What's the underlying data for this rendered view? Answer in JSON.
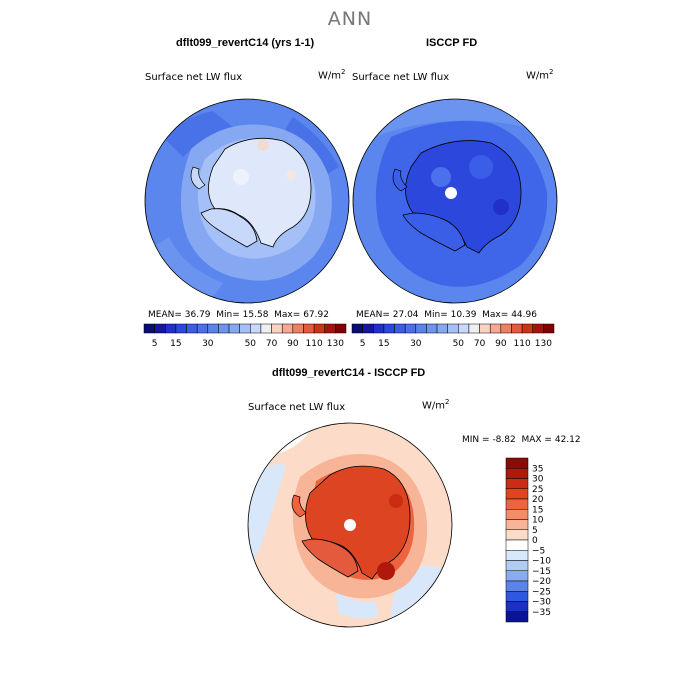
{
  "title": "ANN",
  "colors": {
    "ocean_mid": "#5b86ee",
    "ocean_deep": "#3f66e8",
    "land_light": "#dfe7fb",
    "diff_red": "#dd4422"
  },
  "chart_data": [
    {
      "type": "heatmap",
      "title": "dflt099_revertC14 (yrs 1-1)",
      "subtitle": "Surface net LW flux",
      "units": "W/m",
      "units_exp": "2",
      "mean_label": "MEAN=",
      "mean": "36.79",
      "min_label": "Min=",
      "min": "15.58",
      "max_label": "Max=",
      "max": "67.92",
      "levels": [
        5,
        10,
        15,
        20,
        25,
        30,
        35,
        40,
        45,
        50,
        60,
        70,
        80,
        90,
        100,
        110,
        120,
        130
      ],
      "tick_labels": [
        "5",
        "15",
        "30",
        "50",
        "70",
        "90",
        "110",
        "130"
      ],
      "colors": [
        "#0a0a78",
        "#1616a6",
        "#2030c8",
        "#2c48dc",
        "#3a5ee8",
        "#4a70ec",
        "#5b82ee",
        "#6e94f0",
        "#86a8f2",
        "#a4c0f6",
        "#c8d8fa",
        "#efeff0",
        "#fbd2c4",
        "#f6a890",
        "#ee8064",
        "#e45a3c",
        "#cc3418",
        "#a0140a",
        "#800000"
      ]
    },
    {
      "type": "heatmap",
      "title": "ISCCP FD",
      "subtitle": "Surface net LW flux",
      "units": "W/m",
      "units_exp": "2",
      "mean_label": "MEAN=",
      "mean": "27.04",
      "min_label": "Min=",
      "min": "10.39",
      "max_label": "Max=",
      "max": "44.96",
      "levels": [
        5,
        10,
        15,
        20,
        25,
        30,
        35,
        40,
        45,
        50,
        60,
        70,
        80,
        90,
        100,
        110,
        120,
        130
      ],
      "tick_labels": [
        "5",
        "15",
        "30",
        "50",
        "70",
        "90",
        "110",
        "130"
      ],
      "colors": [
        "#0a0a78",
        "#1616a6",
        "#2030c8",
        "#2c48dc",
        "#3a5ee8",
        "#4a70ec",
        "#5b82ee",
        "#6e94f0",
        "#86a8f2",
        "#a4c0f6",
        "#c8d8fa",
        "#efeff0",
        "#fbd2c4",
        "#f6a890",
        "#ee8064",
        "#e45a3c",
        "#cc3418",
        "#a0140a",
        "#800000"
      ]
    },
    {
      "type": "heatmap",
      "title": "dflt099_revertC14 - ISCCP FD",
      "subtitle": "Surface net LW flux",
      "units": "W/m",
      "units_exp": "2",
      "min_label": "MIN =",
      "min": "-8.82",
      "max_label": "MAX =",
      "max": "42.12",
      "levels": [
        35,
        30,
        25,
        20,
        15,
        10,
        5,
        0,
        -5,
        -10,
        -15,
        -20,
        -25,
        -30,
        -35
      ],
      "tick_labels": [
        "35",
        "30",
        "25",
        "20",
        "15",
        "10",
        "5",
        "0",
        "−5",
        "−10",
        "−15",
        "−20",
        "−25",
        "−30",
        "−35"
      ],
      "colors": [
        "#8a0c08",
        "#b0180c",
        "#cc2c14",
        "#e04420",
        "#ec6440",
        "#f48c68",
        "#f8b496",
        "#fcdcc8",
        "#ffffff",
        "#d8e8fa",
        "#b0ccf4",
        "#88acee",
        "#5a84e8",
        "#3058de",
        "#1a32c4",
        "#0a1496"
      ]
    }
  ]
}
